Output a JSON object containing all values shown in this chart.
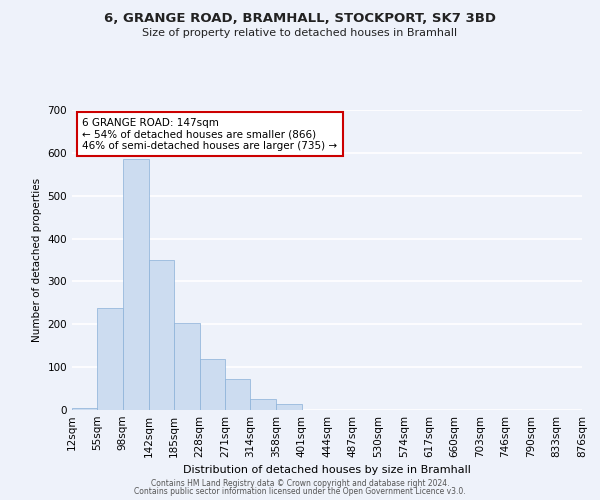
{
  "title": "6, GRANGE ROAD, BRAMHALL, STOCKPORT, SK7 3BD",
  "subtitle": "Size of property relative to detached houses in Bramhall",
  "xlabel": "Distribution of detached houses by size in Bramhall",
  "ylabel": "Number of detached properties",
  "bar_color": "#ccdcf0",
  "bar_edge_color": "#8ab0d8",
  "bin_edges": [
    12,
    55,
    98,
    142,
    185,
    228,
    271,
    314,
    358,
    401,
    444,
    487,
    530,
    574,
    617,
    660,
    703,
    746,
    790,
    833,
    876
  ],
  "bar_heights": [
    5,
    238,
    585,
    350,
    202,
    118,
    72,
    26,
    13,
    0,
    0,
    0,
    0,
    0,
    0,
    0,
    0,
    0,
    0,
    0
  ],
  "tick_labels": [
    "12sqm",
    "55sqm",
    "98sqm",
    "142sqm",
    "185sqm",
    "228sqm",
    "271sqm",
    "314sqm",
    "358sqm",
    "401sqm",
    "444sqm",
    "487sqm",
    "530sqm",
    "574sqm",
    "617sqm",
    "660sqm",
    "703sqm",
    "746sqm",
    "790sqm",
    "833sqm",
    "876sqm"
  ],
  "ylim": [
    0,
    700
  ],
  "yticks": [
    0,
    100,
    200,
    300,
    400,
    500,
    600,
    700
  ],
  "annotation_title": "6 GRANGE ROAD: 147sqm",
  "annotation_line1": "← 54% of detached houses are smaller (866)",
  "annotation_line2": "46% of semi-detached houses are larger (735) →",
  "annotation_box_color": "#ffffff",
  "annotation_box_edge_color": "#cc0000",
  "footer1": "Contains HM Land Registry data © Crown copyright and database right 2024.",
  "footer2": "Contains public sector information licensed under the Open Government Licence v3.0.",
  "background_color": "#eef2fa"
}
